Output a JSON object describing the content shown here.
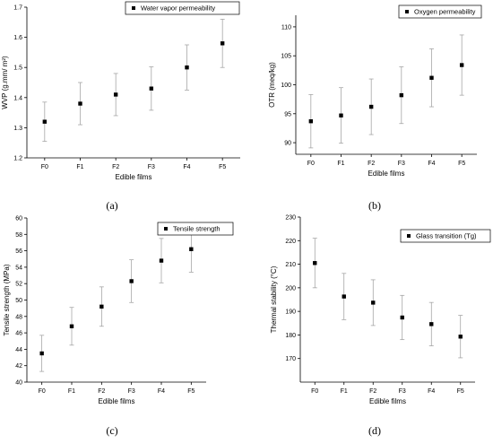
{
  "chart_data": [
    {
      "type": "scatter",
      "panel_label": "(a)",
      "legend": "Water vapor permeability",
      "legend_position": "top-right",
      "xlabel": "Edible films",
      "ylabel": "WVP (g.mm/ m²)",
      "ylim": [
        1.2,
        1.7
      ],
      "yticks": [
        "1.2",
        "1.3",
        "1.4",
        "1.5",
        "1.6",
        "1.7"
      ],
      "categories": [
        "F0",
        "F1",
        "F2",
        "F3",
        "F4",
        "F5"
      ],
      "values": [
        1.32,
        1.38,
        1.41,
        1.43,
        1.5,
        1.58
      ],
      "errors": [
        0.065,
        0.07,
        0.07,
        0.072,
        0.075,
        0.08
      ],
      "grid": false
    },
    {
      "type": "scatter",
      "panel_label": "(b)",
      "legend": "Oxygen permeability",
      "legend_position": "top-right",
      "xlabel": "Edible films",
      "ylabel": "OTR (meq/kg)",
      "ylim": [
        88,
        112
      ],
      "yticks": [
        "90",
        "95",
        "100",
        "105",
        "110"
      ],
      "categories": [
        "F0",
        "F1",
        "F2",
        "F3",
        "F4",
        "F5"
      ],
      "values": [
        93.7,
        94.7,
        96.2,
        98.2,
        101.2,
        103.4
      ],
      "errors": [
        4.6,
        4.8,
        4.8,
        4.9,
        5.0,
        5.2
      ],
      "grid": false
    },
    {
      "type": "scatter",
      "panel_label": "(c)",
      "legend": "Tensile strength",
      "legend_position": "top-right",
      "xlabel": "Edible films",
      "ylabel": "Tensile strength (MPa)",
      "ylim": [
        40,
        60
      ],
      "yticks": [
        "40",
        "42",
        "44",
        "46",
        "48",
        "50",
        "52",
        "54",
        "56",
        "58",
        "60"
      ],
      "categories": [
        "F0",
        "F1",
        "F2",
        "F3",
        "F4",
        "F5"
      ],
      "values": [
        43.5,
        46.8,
        49.2,
        52.3,
        54.8,
        56.2
      ],
      "errors": [
        2.2,
        2.3,
        2.4,
        2.6,
        2.7,
        2.8
      ],
      "grid": false
    },
    {
      "type": "scatter",
      "panel_label": "(d)",
      "legend": "Glass transition (Tg)",
      "legend_position": "top-right",
      "xlabel": "Edible films",
      "ylabel": "Thermal stability (°C)",
      "ylim": [
        160,
        230
      ],
      "yticks": [
        "170",
        "180",
        "190",
        "200",
        "210",
        "220",
        "230"
      ],
      "categories": [
        "F0",
        "F1",
        "F2",
        "F3",
        "F4",
        "F5"
      ],
      "values": [
        210.5,
        196.3,
        193.7,
        187.4,
        184.6,
        179.3
      ],
      "errors": [
        10.5,
        9.8,
        9.7,
        9.4,
        9.2,
        9.0
      ],
      "grid": false
    }
  ]
}
